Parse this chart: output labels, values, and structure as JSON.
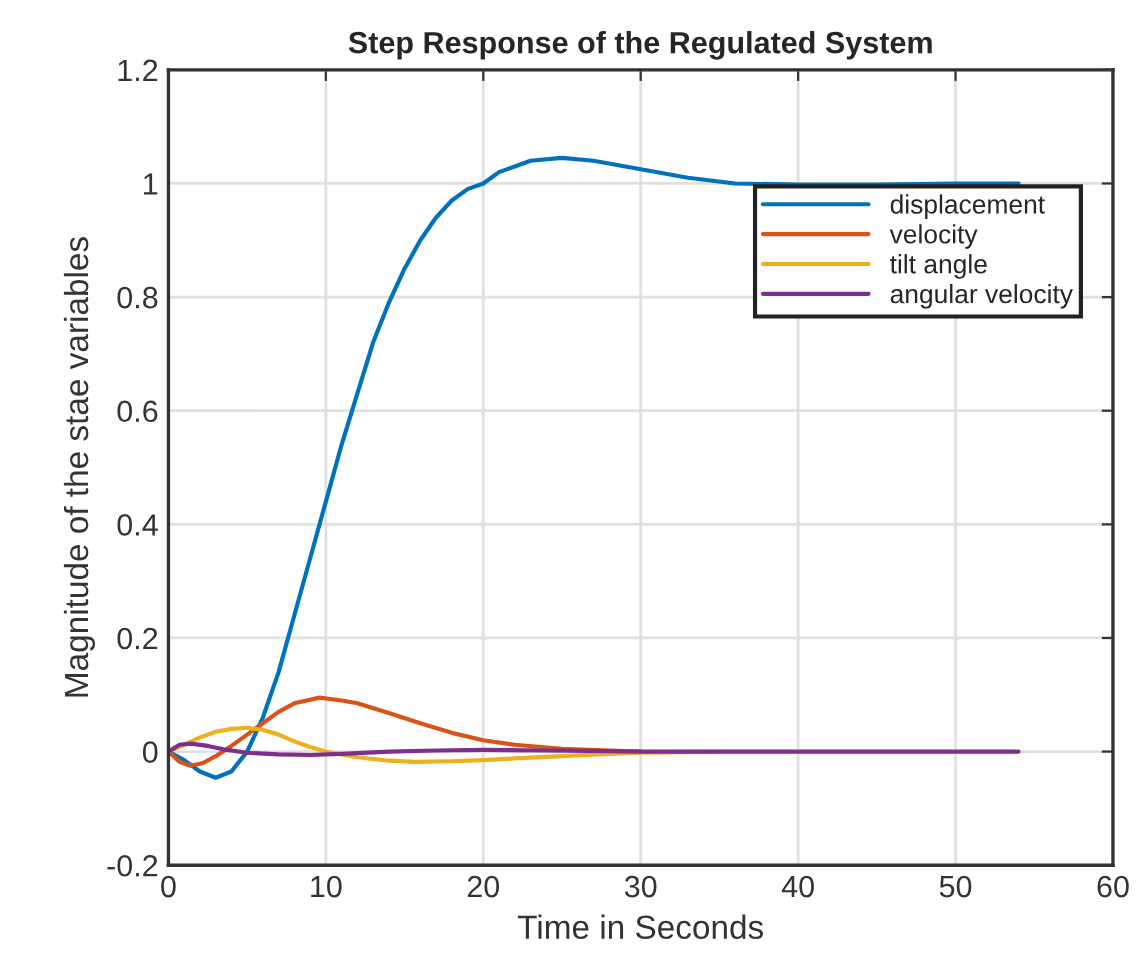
{
  "chart_data": {
    "type": "line",
    "title": "Step Response of the Regulated System",
    "xlabel": "Time in Seconds",
    "ylabel": "Magnitude of the stae variables",
    "xlim": [
      0,
      60
    ],
    "xticks": [
      0,
      10,
      20,
      30,
      40,
      50,
      60
    ],
    "ylim": [
      -0.2,
      1.2
    ],
    "yticks": [
      -0.2,
      0,
      0.2,
      0.4,
      0.6,
      0.8,
      1,
      1.2
    ],
    "grid": true,
    "legend": "top right",
    "series": [
      {
        "name": "displacement",
        "color": "#0072bd",
        "x": [
          0,
          1,
          2,
          3,
          4,
          5,
          6,
          7,
          8,
          9,
          10,
          11,
          12,
          13,
          14,
          15,
          16,
          17,
          18,
          19,
          20,
          21,
          22,
          23,
          25,
          27,
          30,
          33,
          36,
          40,
          45,
          50,
          54
        ],
        "values": [
          0,
          -0.015,
          -0.035,
          -0.046,
          -0.035,
          0,
          0.06,
          0.14,
          0.24,
          0.34,
          0.44,
          0.54,
          0.63,
          0.72,
          0.79,
          0.85,
          0.9,
          0.94,
          0.97,
          0.99,
          1.0,
          1.02,
          1.03,
          1.04,
          1.045,
          1.04,
          1.025,
          1.01,
          1.0,
          0.998,
          0.998,
          1.0,
          1.0
        ]
      },
      {
        "name": "velocity",
        "color": "#d95319",
        "x": [
          0,
          0.7,
          1.4,
          2.2,
          3,
          4,
          5,
          6,
          7,
          8,
          9.6,
          11,
          12,
          14,
          16,
          18,
          20,
          22,
          25,
          28,
          30
        ],
        "values": [
          0,
          -0.018,
          -0.025,
          -0.02,
          -0.008,
          0.01,
          0.03,
          0.05,
          0.07,
          0.085,
          0.095,
          0.09,
          0.085,
          0.068,
          0.05,
          0.033,
          0.02,
          0.012,
          0.005,
          0.002,
          0
        ]
      },
      {
        "name": "tilt angle",
        "color": "#edb120",
        "x": [
          0,
          1,
          2,
          3,
          4,
          5,
          6,
          7,
          8,
          9,
          10,
          12,
          14,
          15.6,
          18,
          20,
          22,
          25,
          28,
          30,
          35
        ],
        "values": [
          0,
          0.012,
          0.025,
          0.035,
          0.04,
          0.042,
          0.038,
          0.03,
          0.018,
          0.008,
          0,
          -0.01,
          -0.016,
          -0.018,
          -0.017,
          -0.015,
          -0.012,
          -0.008,
          -0.004,
          -0.002,
          0
        ]
      },
      {
        "name": "angular velocity",
        "color": "#7e2f8e",
        "x": [
          0,
          0.7,
          1.4,
          2.5,
          3.5,
          5,
          7,
          9,
          11,
          14,
          17,
          20,
          24,
          28,
          30,
          35,
          40,
          45,
          50,
          54
        ],
        "values": [
          0,
          0.012,
          0.014,
          0.01,
          0.004,
          -0.002,
          -0.005,
          -0.006,
          -0.004,
          0,
          0.002,
          0.003,
          0.002,
          0.001,
          0,
          0,
          0,
          0,
          0,
          0
        ]
      }
    ]
  }
}
